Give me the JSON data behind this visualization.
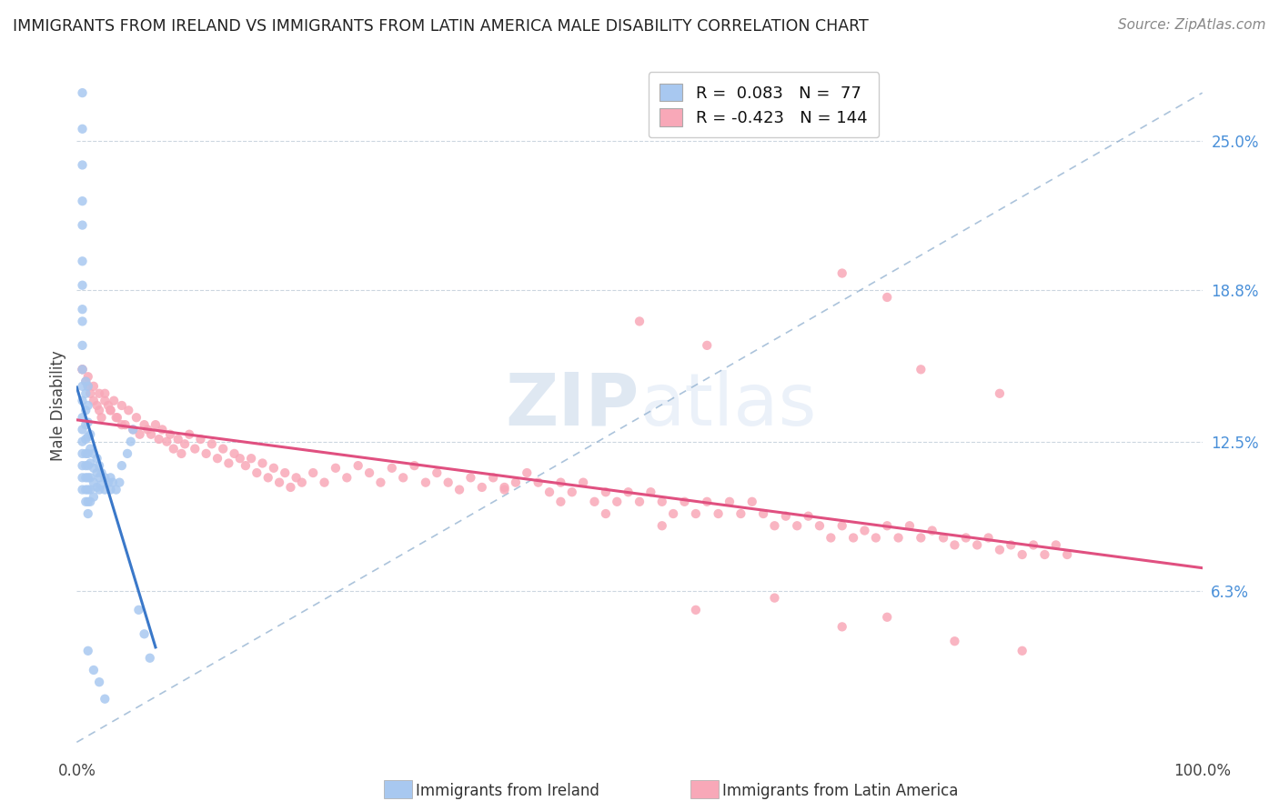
{
  "title": "IMMIGRANTS FROM IRELAND VS IMMIGRANTS FROM LATIN AMERICA MALE DISABILITY CORRELATION CHART",
  "source": "Source: ZipAtlas.com",
  "ylabel": "Male Disability",
  "yticks": [
    0.063,
    0.125,
    0.188,
    0.25
  ],
  "ytick_labels": [
    "6.3%",
    "12.5%",
    "18.8%",
    "25.0%"
  ],
  "xlim": [
    0.0,
    1.0
  ],
  "ylim": [
    -0.005,
    0.285
  ],
  "ireland_color": "#a8c8f0",
  "ireland_line_color": "#3a78c9",
  "latin_color": "#f8a8b8",
  "latin_line_color": "#e05080",
  "diag_color": "#88aacc",
  "ireland_R": 0.083,
  "ireland_N": 77,
  "latin_R": -0.423,
  "latin_N": 144,
  "legend_label_ireland": "Immigrants from Ireland",
  "legend_label_latin": "Immigrants from Latin America",
  "ireland_scatter_x": [
    0.005,
    0.005,
    0.005,
    0.005,
    0.005,
    0.005,
    0.005,
    0.005,
    0.005,
    0.005,
    0.005,
    0.005,
    0.005,
    0.005,
    0.005,
    0.005,
    0.005,
    0.005,
    0.005,
    0.005,
    0.008,
    0.008,
    0.008,
    0.008,
    0.008,
    0.008,
    0.008,
    0.008,
    0.008,
    0.008,
    0.01,
    0.01,
    0.01,
    0.01,
    0.01,
    0.01,
    0.01,
    0.01,
    0.01,
    0.01,
    0.012,
    0.012,
    0.012,
    0.012,
    0.012,
    0.012,
    0.015,
    0.015,
    0.015,
    0.015,
    0.018,
    0.018,
    0.018,
    0.02,
    0.02,
    0.02,
    0.022,
    0.022,
    0.025,
    0.025,
    0.028,
    0.03,
    0.03,
    0.032,
    0.035,
    0.038,
    0.04,
    0.045,
    0.048,
    0.05,
    0.055,
    0.06,
    0.065,
    0.01,
    0.015,
    0.02,
    0.025
  ],
  "ireland_scatter_y": [
    0.27,
    0.255,
    0.24,
    0.225,
    0.215,
    0.2,
    0.19,
    0.18,
    0.175,
    0.165,
    0.155,
    0.148,
    0.142,
    0.135,
    0.13,
    0.125,
    0.12,
    0.115,
    0.11,
    0.105,
    0.15,
    0.145,
    0.138,
    0.132,
    0.126,
    0.12,
    0.115,
    0.11,
    0.105,
    0.1,
    0.148,
    0.14,
    0.133,
    0.127,
    0.12,
    0.115,
    0.11,
    0.105,
    0.1,
    0.095,
    0.128,
    0.122,
    0.116,
    0.11,
    0.105,
    0.1,
    0.12,
    0.114,
    0.108,
    0.102,
    0.118,
    0.112,
    0.106,
    0.115,
    0.11,
    0.105,
    0.112,
    0.107,
    0.11,
    0.105,
    0.108,
    0.11,
    0.105,
    0.108,
    0.105,
    0.108,
    0.115,
    0.12,
    0.125,
    0.13,
    0.055,
    0.045,
    0.035,
    0.038,
    0.03,
    0.025,
    0.018
  ],
  "latin_scatter_x": [
    0.005,
    0.008,
    0.01,
    0.012,
    0.015,
    0.018,
    0.02,
    0.022,
    0.025,
    0.028,
    0.03,
    0.033,
    0.036,
    0.04,
    0.043,
    0.046,
    0.05,
    0.053,
    0.056,
    0.06,
    0.063,
    0.066,
    0.07,
    0.073,
    0.076,
    0.08,
    0.083,
    0.086,
    0.09,
    0.093,
    0.096,
    0.1,
    0.105,
    0.11,
    0.115,
    0.12,
    0.125,
    0.13,
    0.135,
    0.14,
    0.145,
    0.15,
    0.155,
    0.16,
    0.165,
    0.17,
    0.175,
    0.18,
    0.185,
    0.19,
    0.195,
    0.2,
    0.21,
    0.22,
    0.23,
    0.24,
    0.25,
    0.26,
    0.27,
    0.28,
    0.29,
    0.3,
    0.31,
    0.32,
    0.33,
    0.34,
    0.35,
    0.36,
    0.37,
    0.38,
    0.39,
    0.4,
    0.41,
    0.42,
    0.43,
    0.44,
    0.45,
    0.46,
    0.47,
    0.48,
    0.49,
    0.5,
    0.51,
    0.52,
    0.53,
    0.54,
    0.55,
    0.56,
    0.57,
    0.58,
    0.59,
    0.6,
    0.61,
    0.62,
    0.63,
    0.64,
    0.65,
    0.66,
    0.67,
    0.68,
    0.69,
    0.7,
    0.71,
    0.72,
    0.73,
    0.74,
    0.75,
    0.76,
    0.77,
    0.78,
    0.79,
    0.8,
    0.81,
    0.82,
    0.83,
    0.84,
    0.85,
    0.86,
    0.87,
    0.88,
    0.005,
    0.01,
    0.015,
    0.02,
    0.025,
    0.03,
    0.035,
    0.04,
    0.55,
    0.62,
    0.68,
    0.72,
    0.78,
    0.84,
    0.68,
    0.72,
    0.5,
    0.56,
    0.75,
    0.82,
    0.38,
    0.43,
    0.47,
    0.52
  ],
  "latin_scatter_y": [
    0.155,
    0.15,
    0.148,
    0.145,
    0.142,
    0.14,
    0.138,
    0.135,
    0.145,
    0.14,
    0.138,
    0.142,
    0.135,
    0.14,
    0.132,
    0.138,
    0.13,
    0.135,
    0.128,
    0.132,
    0.13,
    0.128,
    0.132,
    0.126,
    0.13,
    0.125,
    0.128,
    0.122,
    0.126,
    0.12,
    0.124,
    0.128,
    0.122,
    0.126,
    0.12,
    0.124,
    0.118,
    0.122,
    0.116,
    0.12,
    0.118,
    0.115,
    0.118,
    0.112,
    0.116,
    0.11,
    0.114,
    0.108,
    0.112,
    0.106,
    0.11,
    0.108,
    0.112,
    0.108,
    0.114,
    0.11,
    0.115,
    0.112,
    0.108,
    0.114,
    0.11,
    0.115,
    0.108,
    0.112,
    0.108,
    0.105,
    0.11,
    0.106,
    0.11,
    0.106,
    0.108,
    0.112,
    0.108,
    0.104,
    0.108,
    0.104,
    0.108,
    0.1,
    0.104,
    0.1,
    0.104,
    0.1,
    0.104,
    0.1,
    0.095,
    0.1,
    0.095,
    0.1,
    0.095,
    0.1,
    0.095,
    0.1,
    0.095,
    0.09,
    0.094,
    0.09,
    0.094,
    0.09,
    0.085,
    0.09,
    0.085,
    0.088,
    0.085,
    0.09,
    0.085,
    0.09,
    0.085,
    0.088,
    0.085,
    0.082,
    0.085,
    0.082,
    0.085,
    0.08,
    0.082,
    0.078,
    0.082,
    0.078,
    0.082,
    0.078,
    0.155,
    0.152,
    0.148,
    0.145,
    0.142,
    0.138,
    0.135,
    0.132,
    0.055,
    0.06,
    0.048,
    0.052,
    0.042,
    0.038,
    0.195,
    0.185,
    0.175,
    0.165,
    0.155,
    0.145,
    0.105,
    0.1,
    0.095,
    0.09
  ]
}
